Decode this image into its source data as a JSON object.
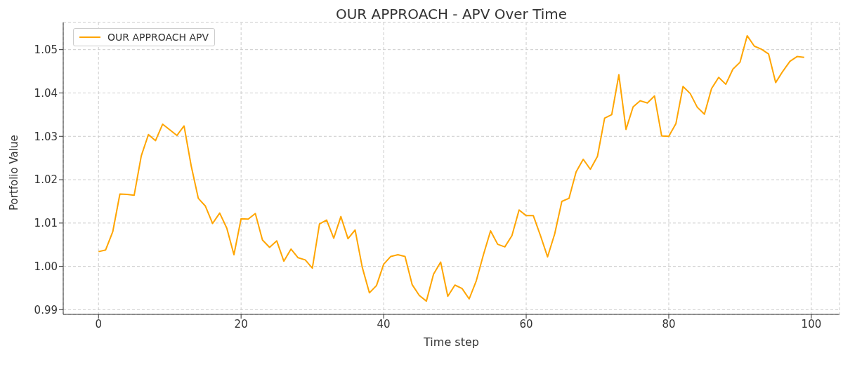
{
  "chart_data": {
    "type": "line",
    "title": "OUR APPROACH - APV Over Time",
    "xlabel": "Time step",
    "ylabel": "Portfolio Value",
    "x": [
      0,
      1,
      2,
      3,
      4,
      5,
      6,
      7,
      8,
      9,
      10,
      11,
      12,
      13,
      14,
      15,
      16,
      17,
      18,
      19,
      20,
      21,
      22,
      23,
      24,
      25,
      26,
      27,
      28,
      29,
      30,
      31,
      32,
      33,
      34,
      35,
      36,
      37,
      38,
      39,
      40,
      41,
      42,
      43,
      44,
      45,
      46,
      47,
      48,
      49,
      50,
      51,
      52,
      53,
      54,
      55,
      56,
      57,
      58,
      59,
      60,
      61,
      62,
      63,
      64,
      65,
      66,
      67,
      68,
      69,
      70,
      71,
      72,
      73,
      74,
      75,
      76,
      77,
      78,
      79,
      80,
      81,
      82,
      83,
      84,
      85,
      86,
      87,
      88,
      89,
      90,
      91,
      92,
      93,
      94,
      95,
      96,
      97,
      98,
      99
    ],
    "series": [
      {
        "name": "OUR APPROACH APV",
        "color": "#ffa500",
        "values": [
          1.0034,
          1.0038,
          1.008,
          1.0167,
          1.0166,
          1.0164,
          1.0255,
          1.0304,
          1.029,
          1.0328,
          1.0315,
          1.0302,
          1.0324,
          1.0232,
          1.0157,
          1.0139,
          1.0099,
          1.0123,
          1.0088,
          1.0027,
          1.011,
          1.0109,
          1.0122,
          1.0061,
          1.0044,
          1.0059,
          1.0012,
          1.004,
          1.002,
          1.0015,
          0.9996,
          1.0098,
          1.0107,
          1.0065,
          1.0115,
          1.0064,
          1.0084,
          0.9998,
          0.9939,
          0.9956,
          1.0005,
          1.0023,
          1.0027,
          1.0023,
          0.9958,
          0.9933,
          0.992,
          0.9982,
          1.001,
          0.9931,
          0.9957,
          0.9949,
          0.9925,
          0.9967,
          1.0027,
          1.0082,
          1.0051,
          1.0045,
          1.0071,
          1.013,
          1.0117,
          1.0117,
          1.0071,
          1.0022,
          1.0075,
          1.015,
          1.0157,
          1.0218,
          1.0247,
          1.0224,
          1.0254,
          1.0342,
          1.035,
          1.0442,
          1.0316,
          1.0368,
          1.0382,
          1.0377,
          1.0393,
          1.0301,
          1.03,
          1.0329,
          1.0415,
          1.0399,
          1.0367,
          1.0351,
          1.041,
          1.0436,
          1.042,
          1.0455,
          1.0471,
          1.0532,
          1.0508,
          1.0501,
          1.049,
          1.0424,
          1.045,
          1.0473,
          1.0484,
          1.0482
        ]
      }
    ],
    "xlim": [
      -4.95,
      103.95
    ],
    "xticks": [
      0,
      20,
      40,
      60,
      80,
      100
    ],
    "ylim": [
      0.98894,
      1.05626
    ],
    "yticks": [
      0.99,
      {
        "value": 1.0,
        "label": "1.00"
      },
      1.01,
      1.02,
      1.03,
      1.04,
      1.05
    ],
    "grid": true,
    "legend": "top left",
    "marker": "none",
    "line_style": "solid"
  }
}
